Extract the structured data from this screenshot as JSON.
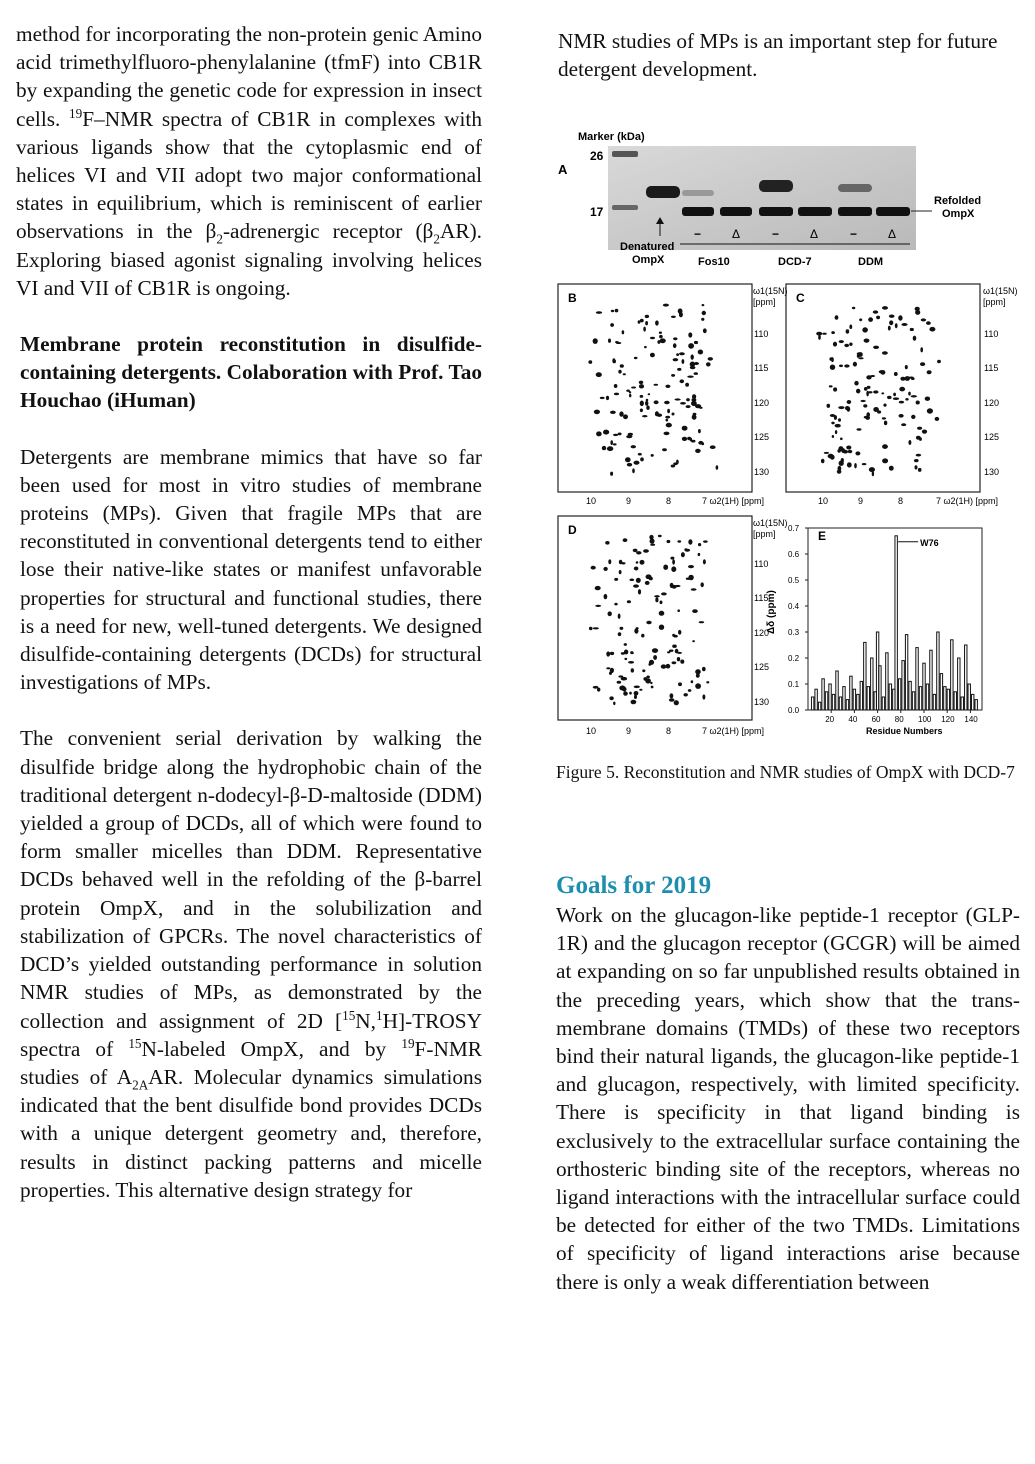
{
  "left_column": {
    "intro_paragraph_parts": [
      "method for incorporating the non-protein genic Amino acid trimethylfluoro-phenylalanine (tfmF) into CB1R by expanding the genetic code for expression in insect cells. ",
      "19",
      "F–NMR spectra of CB1R in complexes with various ligands show that the cytoplasmic end of helices VI and VII adopt two major conformational states in equilibrium, which is reminiscent of earlier observations in the β",
      "2",
      "-adrenergic receptor (β",
      "2",
      "AR). Exploring biased agonist signaling involving helices VI and VII of CB1R is ongoing."
    ],
    "section_heading": "Membrane protein reconstitution in disulfide-containing detergents. Colaboration with Prof. Tao Houchao (iHuman)",
    "paragraph_2": "Detergents are membrane mimics that have so far been used for most in vitro studies of membrane proteins (MPs). Given that fragile MPs that are reconstituted in conventional detergents tend to either lose their native-like states or manifest unfavorable properties for structural and functional studies, there is a need for new, well-tuned detergents. We designed disulfide-containing detergents (DCDs) for structural investigations of MPs.",
    "paragraph_3_parts": [
      "The convenient serial derivation by walking the disulfide bridge along the hydrophobic chain of the traditional detergent n-dodecyl-β-D-maltoside (DDM) yielded a group of DCDs, all of which were found to form smaller micelles than DDM. Representative DCDs behaved well in the refolding of the β-barrel protein OmpX, and in the solubilization and stabilization of GPCRs. The novel characteristics of DCD’s yielded outstanding performance in solution NMR studies of MPs, as demonstrated by the collection and assignment of 2D [",
      "15",
      "N,",
      "1",
      "H]-TROSY spectra of ",
      "15",
      "N-labeled OmpX, and by ",
      "19",
      "F-NMR studies of A",
      "2A",
      "AR. Molecular dynamics simulations indicated that the bent disulfide bond provides DCDs with a unique detergent geometry and, therefore, results in distinct packing patterns and micelle properties. This alternative design strategy for"
    ]
  },
  "right_column": {
    "top_paragraph": "NMR studies of MPs is an important step for future detergent development.",
    "figure_caption": "Figure 5. Reconstitution and NMR studies of OmpX with DCD-7",
    "goals_title": "Goals for 2019",
    "goals_paragraph": "Work on the glucagon-like peptide-1 receptor (GLP-1R) and the glucagon receptor (GCGR) will be aimed at expanding on so far unpublished results obtained in the preceding years, which show that the trans-membrane domains (TMDs) of these two receptors bind their natural ligands, the glucagon-like peptide-1 and glucagon, respectively, with limited specificity. There is specificity in that ligand binding is exclusively to the extracellular surface containing the orthosteric binding site of the receptors, whereas no ligand interactions with the intracellular surface could be detected for either of the two TMDs. Limitations of specificity of ligand interactions arise because there is only a weak differentiation between"
  },
  "figure": {
    "panel_labels": [
      "A",
      "B",
      "C",
      "D",
      "E"
    ],
    "gel": {
      "marker_label": "Marker (kDa)",
      "marker_26": "26",
      "marker_17": "17",
      "lane_signs": [
        "−",
        "Δ",
        "−",
        "Δ",
        "−",
        "Δ"
      ],
      "denatured_label": "Denatured",
      "ompx_label": "OmpX",
      "groups": [
        "Fos10",
        "DCD-7",
        "DDM"
      ],
      "refolded_label_1": "Refolded",
      "refolded_label_2": "OmpX"
    },
    "spectra": {
      "y_unit_top": "ω1(15N)",
      "y_unit_bottom": "[ppm]",
      "y_ticks": [
        "110",
        "115",
        "120",
        "125",
        "130"
      ],
      "x_ticks": [
        "10",
        "9",
        "8"
      ],
      "x_axis_label": "7 ω2(1H) [ppm]"
    },
    "chart_data": {
      "type": "bar",
      "xlabel": "Residue Numbers",
      "ylabel": "Δδ (ppm)",
      "ylim": [
        0.0,
        0.7
      ],
      "xlim": [
        0,
        150
      ],
      "x_ticks": [
        "20",
        "40",
        "60",
        "80",
        "100",
        "120",
        "140"
      ],
      "y_ticks": [
        "0.0",
        "0.1",
        "0.2",
        "0.3",
        "0.4",
        "0.5",
        "0.6",
        "0.7"
      ],
      "annotation": "W76",
      "x": [
        4,
        7,
        10,
        13,
        16,
        19,
        22,
        25,
        28,
        31,
        34,
        37,
        40,
        43,
        46,
        49,
        52,
        55,
        58,
        60,
        62,
        65,
        68,
        71,
        74,
        76,
        79,
        82,
        85,
        88,
        91,
        94,
        97,
        100,
        103,
        106,
        109,
        112,
        115,
        118,
        121,
        124,
        127,
        130,
        133,
        136,
        139,
        142,
        145
      ],
      "values": [
        0.05,
        0.08,
        0.03,
        0.12,
        0.07,
        0.1,
        0.06,
        0.15,
        0.05,
        0.09,
        0.04,
        0.13,
        0.08,
        0.06,
        0.11,
        0.26,
        0.09,
        0.2,
        0.07,
        0.3,
        0.17,
        0.05,
        0.22,
        0.1,
        0.08,
        0.67,
        0.12,
        0.19,
        0.29,
        0.11,
        0.07,
        0.24,
        0.09,
        0.18,
        0.1,
        0.23,
        0.06,
        0.3,
        0.14,
        0.09,
        0.08,
        0.27,
        0.07,
        0.2,
        0.05,
        0.25,
        0.1,
        0.06,
        0.04
      ]
    }
  }
}
